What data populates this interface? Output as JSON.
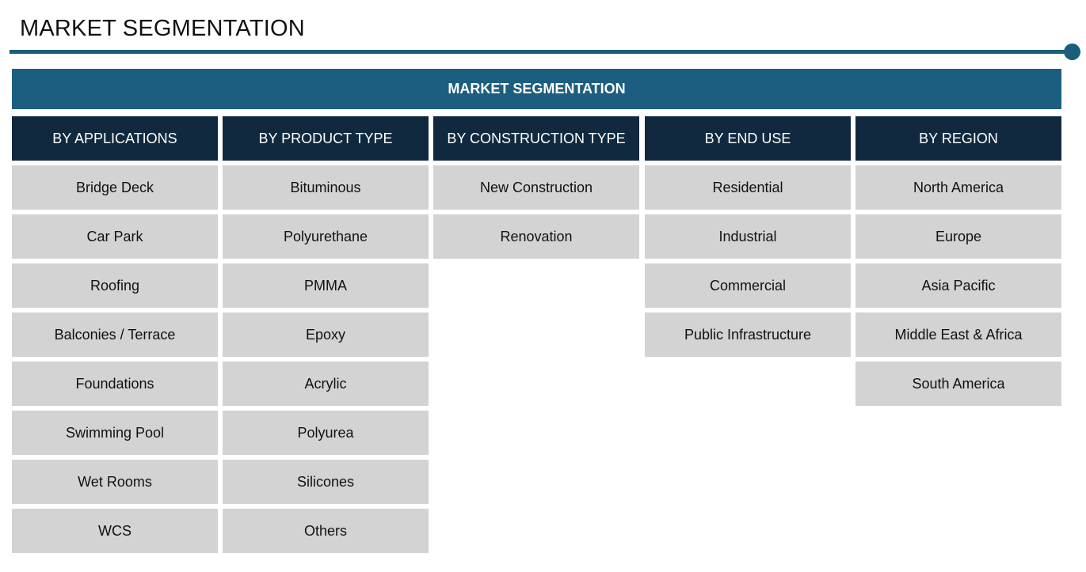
{
  "page": {
    "title": "MARKET SEGMENTATION"
  },
  "banner": {
    "label": "MARKET SEGMENTATION"
  },
  "columns": [
    {
      "header": "BY APPLICATIONS",
      "items": [
        "Bridge Deck",
        "Car Park",
        "Roofing",
        "Balconies / Terrace",
        "Foundations",
        "Swimming Pool",
        "Wet Rooms",
        "WCS"
      ]
    },
    {
      "header": "BY PRODUCT TYPE",
      "items": [
        "Bituminous",
        "Polyurethane",
        "PMMA",
        "Epoxy",
        "Acrylic",
        "Polyurea",
        "Silicones",
        "Others"
      ]
    },
    {
      "header": "BY CONSTRUCTION TYPE",
      "items": [
        "New Construction",
        "Renovation"
      ]
    },
    {
      "header": "BY END USE",
      "items": [
        "Residential",
        "Industrial",
        "Commercial",
        "Public Infrastructure"
      ]
    },
    {
      "header": "BY REGION",
      "items": [
        "North America",
        "Europe",
        "Asia Pacific",
        "Middle East & Africa",
        "South America"
      ]
    }
  ],
  "colors": {
    "accent": "#1a5f7a",
    "banner": "#1b5e7f",
    "header": "#11293f",
    "cell": "#d3d3d3"
  }
}
